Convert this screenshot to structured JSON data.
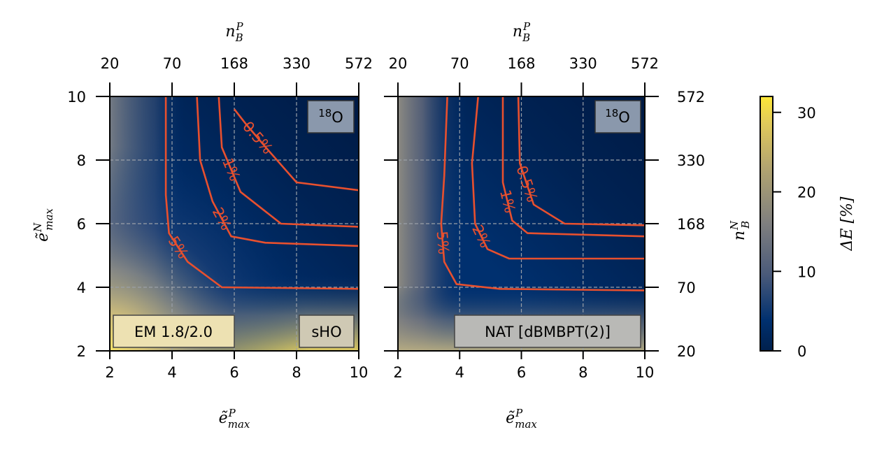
{
  "chart_data": [
    {
      "type": "heatmap",
      "panel": "left",
      "xlabel": "ẽ_max^P",
      "ylabel": "ẽ_max^N",
      "top_axis_label": "n_B^P",
      "xlim": [
        2,
        10
      ],
      "ylim": [
        2,
        10
      ],
      "x_ticks": [
        "2",
        "4",
        "6",
        "8",
        "10"
      ],
      "y_ticks": [
        "2",
        "4",
        "6",
        "8",
        "10"
      ],
      "top_ticks": [
        "20",
        "70",
        "168",
        "330",
        "572"
      ],
      "annotations": {
        "nucleus": "18O",
        "interaction": "EM 1.8/2.0",
        "basis": "sHO"
      },
      "contours": [
        {
          "label": "0.5%",
          "points": [
            [
              6,
              9.6
            ],
            [
              6.4,
              9.1
            ],
            [
              7.1,
              8.3
            ],
            [
              8,
              7.3
            ],
            [
              10,
              7.05
            ]
          ]
        },
        {
          "label": "1%",
          "points": [
            [
              5.5,
              10
            ],
            [
              5.6,
              8.4
            ],
            [
              6.2,
              7
            ],
            [
              7.5,
              6
            ],
            [
              10,
              5.9
            ]
          ]
        },
        {
          "label": "2%",
          "points": [
            [
              4.8,
              10
            ],
            [
              4.9,
              8
            ],
            [
              5.3,
              6.7
            ],
            [
              5.9,
              5.6
            ],
            [
              7,
              5.4
            ],
            [
              10,
              5.3
            ]
          ]
        },
        {
          "label": "5%",
          "points": [
            [
              3.8,
              10
            ],
            [
              3.8,
              6.9
            ],
            [
              3.9,
              5.7
            ],
            [
              4.5,
              4.8
            ],
            [
              5.6,
              4.0
            ],
            [
              10,
              3.95
            ]
          ]
        }
      ],
      "grid": true
    },
    {
      "type": "heatmap",
      "panel": "right",
      "xlabel": "ẽ_max^P",
      "right_axis_label": "n_B^N",
      "top_axis_label": "n_B^P",
      "xlim": [
        2,
        10
      ],
      "ylim": [
        2,
        10
      ],
      "x_ticks": [
        "2",
        "4",
        "6",
        "8",
        "10"
      ],
      "right_ticks": [
        "20",
        "70",
        "168",
        "330",
        "572"
      ],
      "top_ticks": [
        "20",
        "70",
        "168",
        "330",
        "572"
      ],
      "annotations": {
        "nucleus": "18O",
        "method": "NAT [dBMBPT(2)]"
      },
      "contours": [
        {
          "label": "0.5%",
          "points": [
            [
              5.9,
              10
            ],
            [
              5.95,
              7.9
            ],
            [
              6.4,
              6.6
            ],
            [
              7.4,
              6.0
            ],
            [
              10,
              5.95
            ]
          ]
        },
        {
          "label": "1%",
          "points": [
            [
              5.4,
              10
            ],
            [
              5.4,
              7.3
            ],
            [
              5.7,
              6.1
            ],
            [
              6.2,
              5.7
            ],
            [
              10,
              5.6
            ]
          ]
        },
        {
          "label": "2%",
          "points": [
            [
              4.6,
              10
            ],
            [
              4.4,
              7.9
            ],
            [
              4.5,
              6.0
            ],
            [
              4.9,
              5.2
            ],
            [
              5.6,
              4.9
            ],
            [
              10,
              4.9
            ]
          ]
        },
        {
          "label": "5%",
          "points": [
            [
              3.6,
              10
            ],
            [
              3.5,
              7.5
            ],
            [
              3.4,
              6.0
            ],
            [
              3.5,
              4.8
            ],
            [
              3.9,
              4.1
            ],
            [
              5.3,
              3.95
            ],
            [
              10,
              3.9
            ]
          ]
        }
      ],
      "grid": true
    }
  ],
  "colorbar": {
    "label": "ΔE [%]",
    "ticks": [
      "0",
      "10",
      "20",
      "30"
    ],
    "range": [
      0,
      32
    ]
  }
}
